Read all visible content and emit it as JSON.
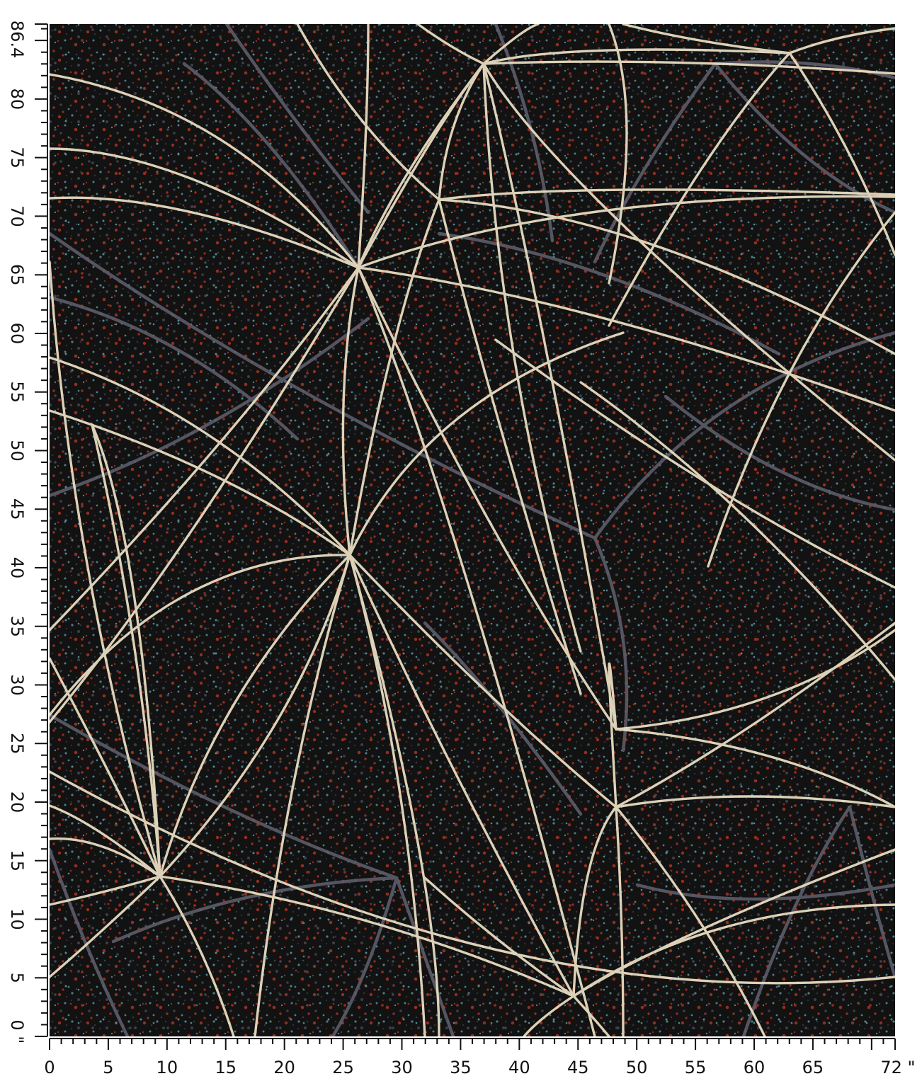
{
  "image": {
    "kind": "fabric-print-preview",
    "width_inches": 72,
    "height_inches": 86.4,
    "colors": {
      "background": "#1d1a1a",
      "base_dark": "#111213",
      "speckle_red": "#b33a26",
      "speckle_teal": "#5f9ca6",
      "speckle_grey": "#4a4d57",
      "line_cream": "#e7dcc0",
      "line_grey": "#5d5d6b",
      "ruler": "#111111"
    }
  },
  "ruler_x": {
    "ticks": [
      0,
      5,
      10,
      15,
      20,
      25,
      30,
      35,
      40,
      45,
      50,
      55,
      60,
      65
    ],
    "end_label": "72 \""
  },
  "ruler_y": {
    "ticks": [
      5,
      10,
      15,
      20,
      25,
      30,
      35,
      40,
      45,
      50,
      55,
      60,
      65,
      70,
      75,
      80
    ],
    "zero_label": "0 \"",
    "top_label": "86.4"
  },
  "hubs": [
    {
      "id": "hub-a",
      "x": 37,
      "y": 83.8
    },
    {
      "id": "hub-b",
      "x": 26.5,
      "y": 65.5
    },
    {
      "id": "hub-c",
      "x": 33,
      "y": 71
    },
    {
      "id": "hub-d",
      "x": 25.5,
      "y": 40.5
    },
    {
      "id": "hub-e",
      "x": 9.3,
      "y": 13.8
    },
    {
      "id": "hub-f",
      "x": 44.3,
      "y": 3
    },
    {
      "id": "hub-g",
      "x": 48,
      "y": 19.5
    },
    {
      "id": "hub-h",
      "x": 64,
      "y": 83.4
    }
  ]
}
